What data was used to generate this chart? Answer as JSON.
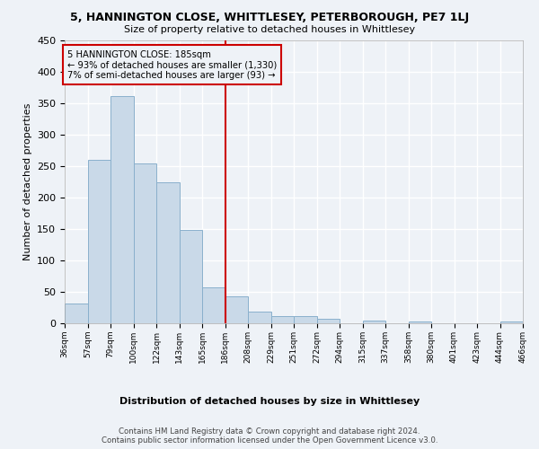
{
  "title": "5, HANNINGTON CLOSE, WHITTLESEY, PETERBOROUGH, PE7 1LJ",
  "subtitle": "Size of property relative to detached houses in Whittlesey",
  "xlabel": "Distribution of detached houses by size in Whittlesey",
  "ylabel": "Number of detached properties",
  "bar_color": "#c9d9e8",
  "bar_edge_color": "#8ab0cc",
  "vline_x": 6,
  "vline_color": "#cc0000",
  "annotation_text": "5 HANNINGTON CLOSE: 185sqm\n← 93% of detached houses are smaller (1,330)\n7% of semi-detached houses are larger (93) →",
  "footer_text": "Contains HM Land Registry data © Crown copyright and database right 2024.\nContains public sector information licensed under the Open Government Licence v3.0.",
  "bin_labels": [
    "36sqm",
    "57sqm",
    "79sqm",
    "100sqm",
    "122sqm",
    "143sqm",
    "165sqm",
    "186sqm",
    "208sqm",
    "229sqm",
    "251sqm",
    "272sqm",
    "294sqm",
    "315sqm",
    "337sqm",
    "358sqm",
    "380sqm",
    "401sqm",
    "423sqm",
    "444sqm",
    "466sqm"
  ],
  "bar_heights": [
    32,
    260,
    362,
    255,
    225,
    148,
    57,
    43,
    18,
    11,
    11,
    7,
    0,
    5,
    0,
    3,
    0,
    0,
    0,
    3
  ],
  "ylim": [
    0,
    450
  ],
  "yticks": [
    0,
    50,
    100,
    150,
    200,
    250,
    300,
    350,
    400,
    450
  ],
  "background_color": "#eef2f7",
  "grid_color": "#ffffff"
}
